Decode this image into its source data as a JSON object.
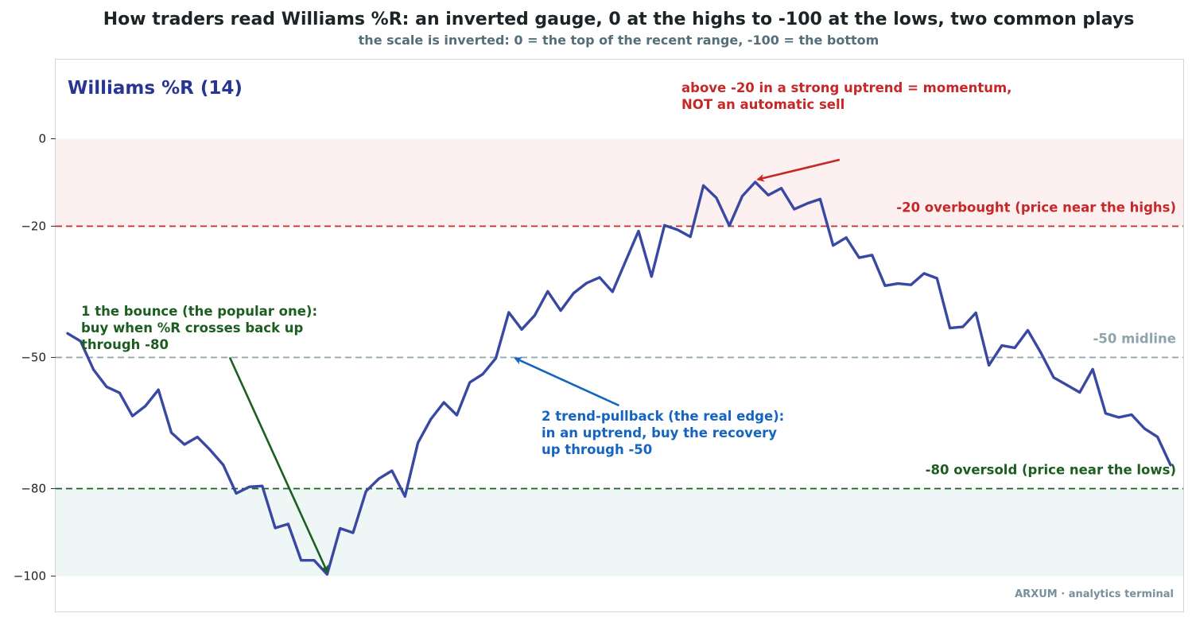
{
  "title": "How traders read Williams %R: an inverted gauge, 0 at the highs to -100 at the lows, two common plays",
  "subtitle": "the scale is inverted: 0 = the top of the recent range, -100 = the bottom",
  "panel_label": "Williams %R (14)",
  "watermark": "ARXUM · analytics terminal",
  "colors": {
    "line": "#3949a3",
    "overbought": "#c62828",
    "oversold": "#1b5e20",
    "midline": "#90a4ae",
    "pullback": "#1565c0",
    "title": "#1c2426",
    "subtitle": "#546e7a",
    "panel_label": "#283593",
    "overbought_zone": "#fdf0f0",
    "oversold_zone": "#eef7f5"
  },
  "chart_data": {
    "type": "line",
    "title": "How traders read Williams %R: an inverted gauge, 0 at the highs to -100 at the lows, two common plays",
    "subtitle": "the scale is inverted: 0 = the top of the recent range, -100 = the bottom",
    "ylabel": "",
    "xlabel": "",
    "ylim": [
      -108,
      18
    ],
    "yticks": [
      0,
      -20,
      -50,
      -80,
      -100
    ],
    "grid": false,
    "series": [
      {
        "name": "",
        "values": [
          -44.5,
          -46.3,
          -52.8,
          -56.7,
          -58.1,
          -63.4,
          -61.1,
          -57.4,
          -67.2,
          -69.9,
          -68.2,
          -71.2,
          -74.6,
          -81.1,
          -79.6,
          -79.4,
          -89.0,
          -88.1,
          -96.4,
          -96.4,
          -99.6,
          -89.1,
          -90.1,
          -80.6,
          -77.7,
          -75.9,
          -81.8,
          -69.5,
          -64.1,
          -60.3,
          -63.2,
          -55.7,
          -53.8,
          -50.2,
          -39.7,
          -43.6,
          -40.4,
          -34.9,
          -39.3,
          -35.3,
          -33.0,
          -31.7,
          -35.0,
          -28.0,
          -21.1,
          -31.5,
          -19.8,
          -20.8,
          -22.4,
          -10.7,
          -13.5,
          -19.9,
          -13.1,
          -9.9,
          -12.9,
          -11.3,
          -16.1,
          -14.8,
          -13.8,
          -24.4,
          -22.6,
          -27.2,
          -26.6,
          -33.6,
          -33.1,
          -33.4,
          -30.8,
          -31.9,
          -43.3,
          -43.0,
          -39.8,
          -51.8,
          -47.3,
          -47.8,
          -43.8,
          -48.9,
          -54.6,
          -56.3,
          -58.0,
          -52.7,
          -62.8,
          -63.7,
          -63.1,
          -66.3,
          -68.2,
          -74.6
        ]
      }
    ],
    "reference_lines": [
      {
        "value": -20,
        "label": "-20  overbought (price near the highs)"
      },
      {
        "value": -50,
        "label": "-50  midline"
      },
      {
        "value": -80,
        "label": "-80  oversold (price near the lows)"
      }
    ],
    "zones": [
      {
        "from": 0,
        "to": -20,
        "name": "overbought"
      },
      {
        "from": -80,
        "to": -100,
        "name": "oversold"
      }
    ],
    "annotations": [
      {
        "id": "bounce",
        "lines": [
          "1  the bounce (the popular one):",
          "buy when %R crosses back up",
          "through -80"
        ],
        "from": {
          "x": 12.5,
          "y": -50
        },
        "to": {
          "x": 20,
          "y": -99
        }
      },
      {
        "id": "pullback",
        "lines": [
          "2  trend-pullback (the real edge):",
          "in an uptrend, buy the recovery",
          "up through -50"
        ],
        "from": {
          "x": 42.5,
          "y": -61
        },
        "to": {
          "x": 34.5,
          "y": -50.2
        }
      },
      {
        "id": "momentum",
        "lines": [
          "above -20 in a strong uptrend = momentum,",
          "NOT an automatic sell"
        ],
        "from": {
          "x": 59.5,
          "y": -4.8
        },
        "to": {
          "x": 53.2,
          "y": -9.3
        }
      }
    ]
  }
}
